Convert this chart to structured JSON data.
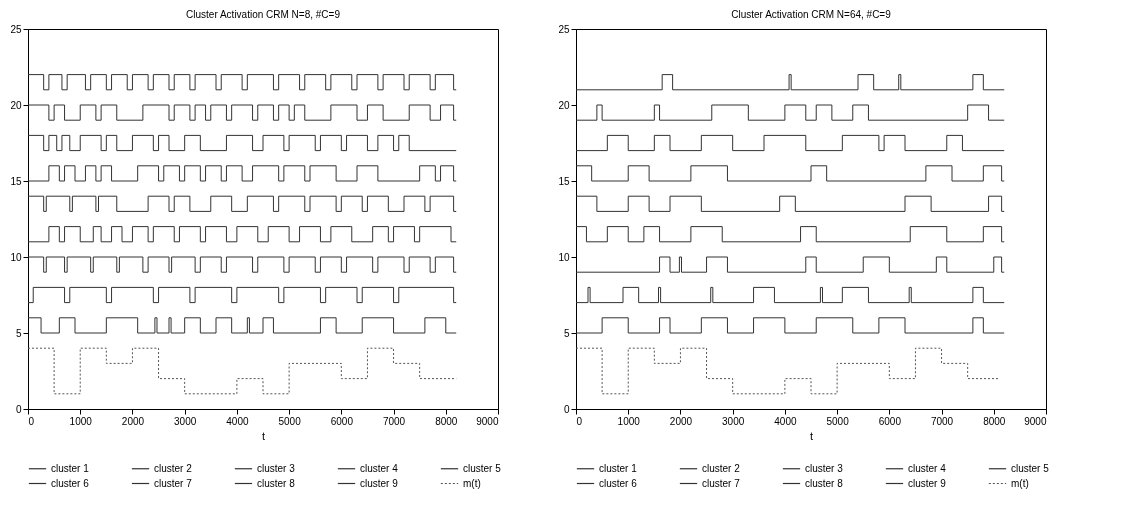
{
  "chart_data": [
    {
      "type": "step",
      "title": "Cluster Activation CRM N=8, #C=9",
      "xlabel": "t",
      "xlim": [
        0,
        9000
      ],
      "xticks": [
        0,
        1000,
        2000,
        3000,
        4000,
        5000,
        6000,
        7000,
        8000,
        9000
      ],
      "ylim": [
        0,
        25
      ],
      "yticks": [
        0,
        5,
        10,
        15,
        20,
        25
      ],
      "legend": "bottom",
      "series": [
        {
          "name": "cluster 1",
          "color": "#333333",
          "x": [
            0,
            250,
            600,
            900,
            1500,
            2100,
            2430,
            2470,
            2700,
            2740,
            3000,
            3300,
            3600,
            3900,
            4200,
            4240,
            4500,
            4700,
            5600,
            5900,
            6400,
            7000,
            7600,
            8000,
            8200
          ],
          "values": [
            6,
            5,
            6,
            5,
            6,
            5,
            6,
            5,
            6,
            5,
            6,
            5,
            6,
            5,
            6,
            5,
            6,
            5,
            6,
            5,
            6,
            5,
            6,
            5,
            5
          ]
        },
        {
          "name": "cluster 2",
          "color": "#333333",
          "x": [
            0,
            100,
            700,
            800,
            1500,
            1600,
            2400,
            2500,
            3100,
            3200,
            3900,
            4000,
            4800,
            4900,
            5600,
            5700,
            6300,
            6400,
            7000,
            7100,
            8150,
            8200
          ],
          "values": [
            7,
            8,
            7,
            8,
            7,
            8,
            7,
            8,
            7,
            8,
            7,
            8,
            7,
            8,
            7,
            8,
            7,
            8,
            7,
            8,
            7,
            7
          ]
        },
        {
          "name": "cluster 3",
          "color": "#333333",
          "x": [
            0,
            300,
            350,
            700,
            750,
            1200,
            1250,
            1700,
            1750,
            2200,
            2300,
            2700,
            2750,
            3200,
            3300,
            3700,
            3800,
            4300,
            4400,
            4900,
            5000,
            5500,
            5600,
            6000,
            6100,
            6600,
            6700,
            7200,
            7300,
            7700,
            7800,
            8150,
            8200
          ],
          "values": [
            10,
            9,
            10,
            9,
            10,
            9,
            10,
            9,
            10,
            9,
            10,
            9,
            10,
            9,
            10,
            9,
            10,
            9,
            10,
            9,
            10,
            9,
            10,
            9,
            10,
            9,
            10,
            9,
            10,
            9,
            10,
            9,
            9
          ]
        },
        {
          "name": "cluster 4",
          "color": "#333333",
          "x": [
            0,
            400,
            600,
            700,
            1000,
            1250,
            1400,
            1600,
            1800,
            2000,
            2300,
            2400,
            2800,
            2900,
            3300,
            3400,
            3800,
            4000,
            4400,
            4600,
            5000,
            5200,
            5600,
            5800,
            6200,
            6600,
            6900,
            7000,
            7400,
            7500,
            8100,
            8200
          ],
          "values": [
            11,
            12,
            11,
            12,
            11,
            12,
            11,
            12,
            11,
            12,
            11,
            12,
            11,
            12,
            11,
            12,
            11,
            12,
            11,
            12,
            11,
            12,
            11,
            12,
            11,
            12,
            11,
            12,
            11,
            12,
            11,
            11
          ]
        },
        {
          "name": "cluster 5",
          "color": "#333333",
          "x": [
            0,
            300,
            350,
            800,
            850,
            1300,
            1350,
            1700,
            2300,
            2700,
            2800,
            3100,
            3500,
            3900,
            4200,
            4700,
            4800,
            5300,
            5400,
            5900,
            6000,
            6400,
            6500,
            6900,
            7200,
            7600,
            7700,
            8150,
            8200
          ],
          "values": [
            14,
            13,
            14,
            13,
            14,
            13,
            14,
            13,
            14,
            13,
            14,
            13,
            14,
            13,
            14,
            13,
            14,
            13,
            14,
            13,
            14,
            13,
            14,
            13,
            14,
            13,
            14,
            13,
            13
          ]
        },
        {
          "name": "cluster 6",
          "color": "#333333",
          "x": [
            0,
            400,
            600,
            700,
            900,
            1100,
            1300,
            1400,
            1600,
            2100,
            2500,
            2600,
            2900,
            3000,
            3300,
            3400,
            3700,
            3800,
            4100,
            4300,
            4800,
            4900,
            5300,
            5400,
            5900,
            6300,
            6700,
            7500,
            7800,
            7900,
            8150,
            8200
          ],
          "values": [
            15,
            16,
            15,
            16,
            15,
            16,
            15,
            16,
            15,
            16,
            15,
            16,
            15,
            16,
            15,
            16,
            15,
            16,
            15,
            16,
            15,
            16,
            15,
            16,
            15,
            16,
            15,
            16,
            15,
            16,
            15,
            15
          ]
        },
        {
          "name": "cluster 7",
          "color": "#333333",
          "x": [
            0,
            300,
            400,
            550,
            650,
            800,
            1000,
            1400,
            1500,
            1700,
            2000,
            2400,
            2500,
            2700,
            3000,
            3300,
            3800,
            4300,
            4500,
            4900,
            5000,
            5500,
            5600,
            6000,
            6100,
            6500,
            6700,
            7000,
            7100,
            7300,
            8200
          ],
          "values": [
            18,
            17,
            18,
            17,
            18,
            17,
            18,
            17,
            18,
            17,
            18,
            17,
            18,
            17,
            18,
            17,
            18,
            17,
            18,
            17,
            18,
            17,
            18,
            17,
            18,
            17,
            18,
            17,
            18,
            17,
            17
          ]
        },
        {
          "name": "cluster 8",
          "color": "#333333",
          "x": [
            0,
            400,
            500,
            700,
            1000,
            1300,
            1400,
            1700,
            2200,
            2700,
            2800,
            3100,
            3200,
            3400,
            3500,
            3800,
            3900,
            4300,
            4400,
            4700,
            4800,
            5000,
            5100,
            5300,
            5800,
            6300,
            6500,
            6800,
            7300,
            7700,
            7900,
            8150,
            8200
          ],
          "values": [
            20,
            19,
            20,
            19,
            20,
            19,
            20,
            19,
            20,
            19,
            20,
            19,
            20,
            19,
            20,
            19,
            20,
            19,
            20,
            19,
            20,
            19,
            20,
            19,
            20,
            19,
            20,
            19,
            20,
            19,
            20,
            19,
            19
          ]
        },
        {
          "name": "cluster 9",
          "color": "#333333",
          "x": [
            0,
            300,
            400,
            650,
            750,
            1100,
            1200,
            1500,
            1600,
            1900,
            2000,
            2300,
            2400,
            2700,
            2800,
            3100,
            3200,
            3600,
            3700,
            4100,
            4200,
            4700,
            4800,
            5200,
            5300,
            5700,
            5800,
            6200,
            6300,
            6700,
            6800,
            7200,
            7300,
            7700,
            7800,
            8150,
            8200
          ],
          "values": [
            22,
            21,
            22,
            21,
            22,
            21,
            22,
            21,
            22,
            21,
            22,
            21,
            22,
            21,
            22,
            21,
            22,
            21,
            22,
            21,
            22,
            21,
            22,
            21,
            22,
            21,
            22,
            21,
            22,
            21,
            22,
            21,
            22,
            21,
            22,
            21,
            21
          ]
        },
        {
          "name": "m(t)",
          "color": "#555555",
          "line_style": "dotted",
          "x": [
            0,
            500,
            1000,
            1500,
            2000,
            2500,
            3000,
            4000,
            4500,
            5000,
            6000,
            6500,
            7000,
            7500,
            8200
          ],
          "values": [
            4,
            1,
            4,
            3,
            4,
            2,
            1,
            2,
            1,
            3,
            2,
            4,
            3,
            2,
            2
          ]
        }
      ]
    },
    {
      "type": "step",
      "title": "Cluster Activation CRM N=64, #C=9",
      "xlabel": "t",
      "xlim": [
        0,
        9000
      ],
      "xticks": [
        0,
        1000,
        2000,
        3000,
        4000,
        5000,
        6000,
        7000,
        8000,
        9000
      ],
      "ylim": [
        0,
        25
      ],
      "yticks": [
        0,
        5,
        10,
        15,
        20,
        25
      ],
      "legend": "bottom",
      "series": [
        {
          "name": "cluster 1",
          "color": "#333333",
          "x": [
            0,
            500,
            1000,
            1600,
            1800,
            2400,
            2900,
            3400,
            4000,
            4600,
            5300,
            5800,
            6300,
            7600,
            7800,
            8200
          ],
          "values": [
            5,
            6,
            5,
            6,
            5,
            6,
            5,
            6,
            5,
            6,
            5,
            6,
            5,
            6,
            5,
            5
          ]
        },
        {
          "name": "cluster 2",
          "color": "#333333",
          "x": [
            0,
            230,
            270,
            900,
            1200,
            1580,
            1620,
            2580,
            2620,
            3400,
            3800,
            4680,
            4720,
            5100,
            5600,
            6380,
            6420,
            7600,
            7800,
            8200
          ],
          "values": [
            7,
            8,
            7,
            8,
            7,
            8,
            7,
            8,
            7,
            8,
            7,
            8,
            7,
            8,
            7,
            8,
            7,
            8,
            7,
            7
          ]
        },
        {
          "name": "cluster 3",
          "color": "#333333",
          "x": [
            0,
            1600,
            1800,
            1980,
            2020,
            2500,
            2900,
            4400,
            4600,
            5500,
            6000,
            6900,
            7100,
            8000,
            8150,
            8200
          ],
          "values": [
            9,
            10,
            9,
            10,
            9,
            10,
            9,
            10,
            9,
            10,
            9,
            10,
            9,
            10,
            9,
            9
          ]
        },
        {
          "name": "cluster 4",
          "color": "#333333",
          "x": [
            0,
            200,
            600,
            1000,
            1300,
            1600,
            2200,
            2800,
            4300,
            4600,
            6400,
            7100,
            7800,
            8150,
            8200
          ],
          "values": [
            12,
            11,
            12,
            11,
            12,
            11,
            12,
            11,
            12,
            11,
            12,
            11,
            12,
            11,
            11
          ]
        },
        {
          "name": "cluster 5",
          "color": "#333333",
          "x": [
            0,
            400,
            1000,
            1400,
            1800,
            2400,
            3900,
            4200,
            6300,
            6800,
            7900,
            8150,
            8200
          ],
          "values": [
            14,
            13,
            14,
            13,
            14,
            13,
            14,
            13,
            14,
            13,
            14,
            13,
            13
          ]
        },
        {
          "name": "cluster 6",
          "color": "#333333",
          "x": [
            0,
            300,
            1000,
            1400,
            2200,
            2900,
            4500,
            4800,
            6700,
            7200,
            7800,
            8150,
            8200
          ],
          "values": [
            16,
            15,
            16,
            15,
            16,
            15,
            16,
            15,
            16,
            15,
            16,
            15,
            15
          ]
        },
        {
          "name": "cluster 7",
          "color": "#333333",
          "x": [
            0,
            600,
            1000,
            1500,
            1800,
            2400,
            3000,
            3600,
            4400,
            5100,
            5800,
            5900,
            6300,
            7100,
            7400,
            8200
          ],
          "values": [
            17,
            18,
            17,
            18,
            17,
            18,
            17,
            18,
            17,
            18,
            17,
            18,
            17,
            18,
            17,
            17
          ]
        },
        {
          "name": "cluster 8",
          "color": "#333333",
          "x": [
            0,
            400,
            500,
            1500,
            1600,
            2600,
            3300,
            4000,
            4400,
            4600,
            4900,
            5300,
            5600,
            7500,
            7900,
            8200
          ],
          "values": [
            19,
            20,
            19,
            20,
            19,
            20,
            19,
            20,
            19,
            20,
            19,
            20,
            19,
            20,
            19,
            19
          ]
        },
        {
          "name": "cluster 9",
          "color": "#333333",
          "x": [
            0,
            1650,
            1850,
            4080,
            4120,
            5400,
            5700,
            6180,
            6220,
            7600,
            7800,
            8200
          ],
          "values": [
            21,
            22,
            21,
            22,
            21,
            22,
            21,
            22,
            21,
            22,
            21,
            21
          ]
        },
        {
          "name": "m(t)",
          "color": "#555555",
          "line_style": "dotted",
          "x": [
            0,
            500,
            1000,
            1500,
            2000,
            2500,
            3000,
            4000,
            4500,
            5000,
            6000,
            6500,
            7000,
            7500,
            8100
          ],
          "values": [
            4,
            1,
            4,
            3,
            4,
            2,
            1,
            2,
            1,
            3,
            2,
            4,
            3,
            2,
            2
          ]
        }
      ]
    }
  ]
}
